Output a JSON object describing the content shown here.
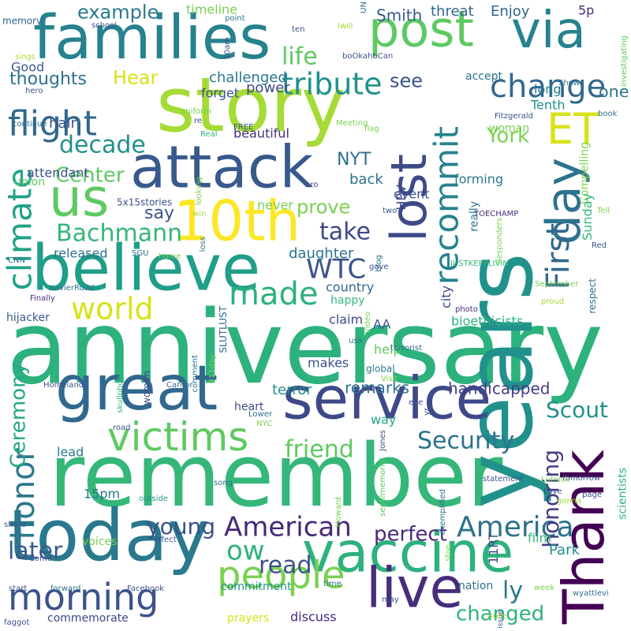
{
  "words": [
    {
      "text": "anniversary",
      "color": "#2db27d"
    },
    {
      "text": "remember",
      "color": "#35b779"
    },
    {
      "text": "years",
      "color": "#21918c"
    },
    {
      "text": "story",
      "color": "#a5db36"
    },
    {
      "text": "today",
      "color": "#2a788e"
    },
    {
      "text": "families",
      "color": "#26828e"
    },
    {
      "text": "great",
      "color": "#31688e"
    },
    {
      "text": "service",
      "color": "#3e4989"
    },
    {
      "text": "believe",
      "color": "#1f9e89"
    },
    {
      "text": "attack",
      "color": "#38598c"
    },
    {
      "text": "vaccine",
      "color": "#2db27d"
    },
    {
      "text": "post",
      "color": "#5ec962"
    },
    {
      "text": "via",
      "color": "#26828e"
    },
    {
      "text": "day",
      "color": "#2c728e"
    },
    {
      "text": "lost",
      "color": "#3e4989"
    },
    {
      "text": "Thank",
      "color": "#440154"
    },
    {
      "text": "live",
      "color": "#472d7b"
    },
    {
      "text": "10th",
      "color": "#fde725"
    },
    {
      "text": "us",
      "color": "#5ec962"
    },
    {
      "text": "ET",
      "color": "#d8e219"
    },
    {
      "text": "victims",
      "color": "#5ec962"
    },
    {
      "text": "people",
      "color": "#7ad151"
    },
    {
      "text": "morning",
      "color": "#3b528b"
    },
    {
      "text": "flight",
      "color": "#31688e"
    },
    {
      "text": "climate",
      "color": "#1fa188"
    },
    {
      "text": "recommit",
      "color": "#26828e"
    },
    {
      "text": "honor",
      "color": "#2a788e"
    },
    {
      "text": "change",
      "color": "#31688e"
    },
    {
      "text": "tribute",
      "color": "#21918c"
    },
    {
      "text": "made",
      "color": "#2db27d"
    },
    {
      "text": "world",
      "color": "#d8e219"
    },
    {
      "text": "First",
      "color": "#31688e"
    },
    {
      "text": "American",
      "color": "#482878"
    },
    {
      "text": "America",
      "color": "#2c728e"
    },
    {
      "text": "Ceremony",
      "color": "#22a884"
    },
    {
      "text": "honoring",
      "color": "#433e85"
    },
    {
      "text": "WTC",
      "color": "#3b528b"
    },
    {
      "text": "Bachmann",
      "color": "#35b779"
    },
    {
      "text": "decade",
      "color": "#21918c"
    },
    {
      "text": "Security",
      "color": "#2c728e"
    },
    {
      "text": "Scout",
      "color": "#21918c"
    },
    {
      "text": "friend",
      "color": "#5ec962"
    },
    {
      "text": "take",
      "color": "#3e4989"
    },
    {
      "text": "later",
      "color": "#38598c"
    },
    {
      "text": "young",
      "color": "#3b528b"
    },
    {
      "text": "read",
      "color": "#3b528b"
    },
    {
      "text": "perfect",
      "color": "#482878"
    },
    {
      "text": "ly",
      "color": "#2a788e"
    },
    {
      "text": "ow",
      "color": "#2db27d"
    },
    {
      "text": "changed",
      "color": "#2db27d"
    },
    {
      "text": "prove",
      "color": "#7ad151"
    },
    {
      "text": "say",
      "color": "#3b528b"
    },
    {
      "text": "life",
      "color": "#5ec962"
    },
    {
      "text": "example",
      "color": "#2a788e"
    },
    {
      "text": "Hear",
      "color": "#d8e219"
    },
    {
      "text": "thoughts",
      "color": "#2c728e"
    },
    {
      "text": "NYT",
      "color": "#2c728e"
    },
    {
      "text": "Center",
      "color": "#5ec962"
    },
    {
      "text": "one",
      "color": "#2c728e"
    },
    {
      "text": "see",
      "color": "#3b528b"
    },
    {
      "text": "York",
      "color": "#7ad151"
    },
    {
      "text": "Smith",
      "color": "#38598c"
    },
    {
      "text": "threat",
      "color": "#31688e"
    },
    {
      "text": "Enjoy",
      "color": "#31688e"
    },
    {
      "text": "5p",
      "color": "#482878"
    },
    {
      "text": "timeline",
      "color": "#7ad151"
    },
    {
      "text": "challenged",
      "color": "#2a788e"
    },
    {
      "text": "forget",
      "color": "#3b528b"
    },
    {
      "text": "power",
      "color": "#3e4989"
    },
    {
      "text": "Good",
      "color": "#38598c"
    },
    {
      "text": "union",
      "color": "#5ec962"
    },
    {
      "text": "memory",
      "color": "#31688e"
    },
    {
      "text": "hair",
      "color": "#3b528b"
    },
    {
      "text": "attendant",
      "color": "#3b528b"
    },
    {
      "text": "beautiful",
      "color": "#472d7b"
    },
    {
      "text": "accept",
      "color": "#2c728e"
    },
    {
      "text": "long",
      "color": "#2a788e"
    },
    {
      "text": "Tenth",
      "color": "#21918c"
    },
    {
      "text": "woman",
      "color": "#7ad151"
    },
    {
      "text": "forming",
      "color": "#2a788e"
    },
    {
      "text": "Compelling",
      "color": "#7ad151"
    },
    {
      "text": "Sunday",
      "color": "#35b779"
    },
    {
      "text": "really",
      "color": "#2a788e"
    },
    {
      "text": "HPV",
      "color": "#3e4989"
    },
    {
      "text": "event",
      "color": "#3b528b"
    },
    {
      "text": "back",
      "color": "#2c728e"
    },
    {
      "text": "never",
      "color": "#7ad151"
    },
    {
      "text": "daughter",
      "color": "#2c728e"
    },
    {
      "text": "released",
      "color": "#2c728e"
    },
    {
      "text": "country",
      "color": "#31688e"
    },
    {
      "text": "city",
      "color": "#3e4989"
    },
    {
      "text": "bioethicists",
      "color": "#2db27d"
    },
    {
      "text": "happy",
      "color": "#35b779"
    },
    {
      "text": "claim",
      "color": "#3e4989"
    },
    {
      "text": "AA",
      "color": "#3b528b"
    },
    {
      "text": "hijacker",
      "color": "#38598c"
    },
    {
      "text": "SLUTLUST",
      "color": "#31688e"
    },
    {
      "text": "respect",
      "color": "#2c728e"
    },
    {
      "text": "help",
      "color": "#5ec962"
    },
    {
      "text": "makes",
      "color": "#3b528b"
    },
    {
      "text": "global",
      "color": "#2a788e"
    },
    {
      "text": "terror",
      "color": "#21918c"
    },
    {
      "text": "remarks",
      "color": "#2c728e"
    },
    {
      "text": "handicapped",
      "color": "#433e85"
    },
    {
      "text": "heart",
      "color": "#3e4989"
    },
    {
      "text": "way",
      "color": "#22a884"
    },
    {
      "text": "women",
      "color": "#3e4989"
    },
    {
      "text": "lead",
      "color": "#2a788e"
    },
    {
      "text": "15pm",
      "color": "#2a788e"
    },
    {
      "text": "voices",
      "color": "#7ad151"
    },
    {
      "text": "film",
      "color": "#35b779"
    },
    {
      "text": "11RT",
      "color": "#3e4989"
    },
    {
      "text": "nation",
      "color": "#2c728e"
    },
    {
      "text": "commitment",
      "color": "#21918c"
    },
    {
      "text": "prayers",
      "color": "#d8e219"
    },
    {
      "text": "discuss",
      "color": "#482878"
    },
    {
      "text": "commemorate",
      "color": "#3e4989"
    },
    {
      "text": "Park",
      "color": "#21918c"
    },
    {
      "text": "scientists",
      "color": "#2db27d"
    },
    {
      "text": "5x15stories",
      "color": "#3b528b"
    },
    {
      "text": "CNN",
      "color": "#2c728e"
    },
    {
      "text": "Finally",
      "color": "#472d7b"
    },
    {
      "text": "XavierRudd",
      "color": "#2c728e"
    },
    {
      "text": "Homeland",
      "color": "#3b528b"
    },
    {
      "text": "Cantor",
      "color": "#2c728e"
    },
    {
      "text": "skullphone",
      "color": "#35b779"
    },
    {
      "text": "comment",
      "color": "#2c728e"
    },
    {
      "text": "911day",
      "color": "#7ad151"
    },
    {
      "text": "terrorist",
      "color": "#2c728e"
    },
    {
      "text": "Visit",
      "color": "#7ad151"
    },
    {
      "text": "usa",
      "color": "#2c728e"
    },
    {
      "text": "Video",
      "color": "#7ad151"
    },
    {
      "text": "photo",
      "color": "#482878"
    },
    {
      "text": "proud",
      "color": "#a5db36"
    },
    {
      "text": "September",
      "color": "#7ad151"
    },
    {
      "text": "Red",
      "color": "#3b528b"
    },
    {
      "text": "JUSTKEEPLIVIN",
      "color": "#35b779"
    },
    {
      "text": "gave",
      "color": "#3b528b"
    },
    {
      "text": "blog",
      "color": "#2c728e"
    },
    {
      "text": "Responders",
      "color": "#7ad151"
    },
    {
      "text": "TOECHAMP",
      "color": "#472d7b"
    },
    {
      "text": "two",
      "color": "#3b528b"
    },
    {
      "text": "Tell",
      "color": "#7ad151"
    },
    {
      "text": "Show",
      "color": "#2c728e"
    },
    {
      "text": "investigating",
      "color": "#5ec962"
    },
    {
      "text": "book",
      "color": "#2c728e"
    },
    {
      "text": "Fitzgerald",
      "color": "#3b528b"
    },
    {
      "text": "flag",
      "color": "#7ad151"
    },
    {
      "text": "Meeting",
      "color": "#7ad151"
    },
    {
      "text": "Real",
      "color": "#35b779"
    },
    {
      "text": "FREE",
      "color": "#3b528b"
    },
    {
      "text": "bro",
      "color": "#3e4989"
    },
    {
      "text": "win",
      "color": "#a5db36"
    },
    {
      "text": "loss",
      "color": "#2c728e"
    },
    {
      "text": "home",
      "color": "#7ad151"
    },
    {
      "text": "SGU",
      "color": "#2c728e"
    },
    {
      "text": "looking",
      "color": "#7ad151"
    },
    {
      "text": "continue",
      "color": "#2c728e"
    },
    {
      "text": "uniform",
      "color": "#7ad151"
    },
    {
      "text": "re",
      "color": "#3b528b"
    },
    {
      "text": "hero",
      "color": "#3b528b"
    },
    {
      "text": "sings",
      "color": "#a5db36"
    },
    {
      "text": "school",
      "color": "#3b528b"
    },
    {
      "text": "10am",
      "color": "#3b528b"
    },
    {
      "text": "point",
      "color": "#2c728e"
    },
    {
      "text": "UN",
      "color": "#2c728e"
    },
    {
      "text": "ten",
      "color": "#3b528b"
    },
    {
      "text": "Iwill",
      "color": "#a5db36"
    },
    {
      "text": "boOkahbCan",
      "color": "#3b528b"
    },
    {
      "text": "Lower",
      "color": "#2c728e"
    },
    {
      "text": "eve",
      "color": "#3b528b"
    },
    {
      "text": "NYC",
      "color": "#7ad151"
    },
    {
      "text": "yr",
      "color": "#3b528b"
    },
    {
      "text": "road",
      "color": "#3b528b"
    },
    {
      "text": "Jones",
      "color": "#3b528b"
    },
    {
      "text": "septilmemorial",
      "color": "#5ec962"
    },
    {
      "text": "statement",
      "color": "#3b528b"
    },
    {
      "text": "tomorrow",
      "color": "#3b528b"
    },
    {
      "text": "outside",
      "color": "#21918c"
    },
    {
      "text": "song",
      "color": "#2c728e"
    },
    {
      "text": "Howard",
      "color": "#7ad151"
    },
    {
      "text": "exemplified",
      "color": "#2c728e"
    },
    {
      "text": "Lutnick",
      "color": "#7ad151"
    },
    {
      "text": "Love",
      "color": "#3b528b"
    },
    {
      "text": "gonna",
      "color": "#a5db36"
    },
    {
      "text": "page",
      "color": "#3b528b"
    },
    {
      "text": "share",
      "color": "#3b528b"
    },
    {
      "text": "effect",
      "color": "#3b528b"
    },
    {
      "text": "Come",
      "color": "#3b528b"
    },
    {
      "text": "stop",
      "color": "#7ad151"
    },
    {
      "text": "start",
      "color": "#3b528b"
    },
    {
      "text": "forward",
      "color": "#2c728e"
    },
    {
      "text": "Facebook",
      "color": "#3b528b"
    },
    {
      "text": "time",
      "color": "#2c728e"
    },
    {
      "text": "week",
      "color": "#7ad151"
    },
    {
      "text": "wyattlevi",
      "color": "#2c728e"
    },
    {
      "text": "may",
      "color": "#3b528b"
    },
    {
      "text": "sure",
      "color": "#a5db36"
    },
    {
      "text": "issue",
      "color": "#3b528b"
    },
    {
      "text": "faggot",
      "color": "#3b528b"
    }
  ]
}
